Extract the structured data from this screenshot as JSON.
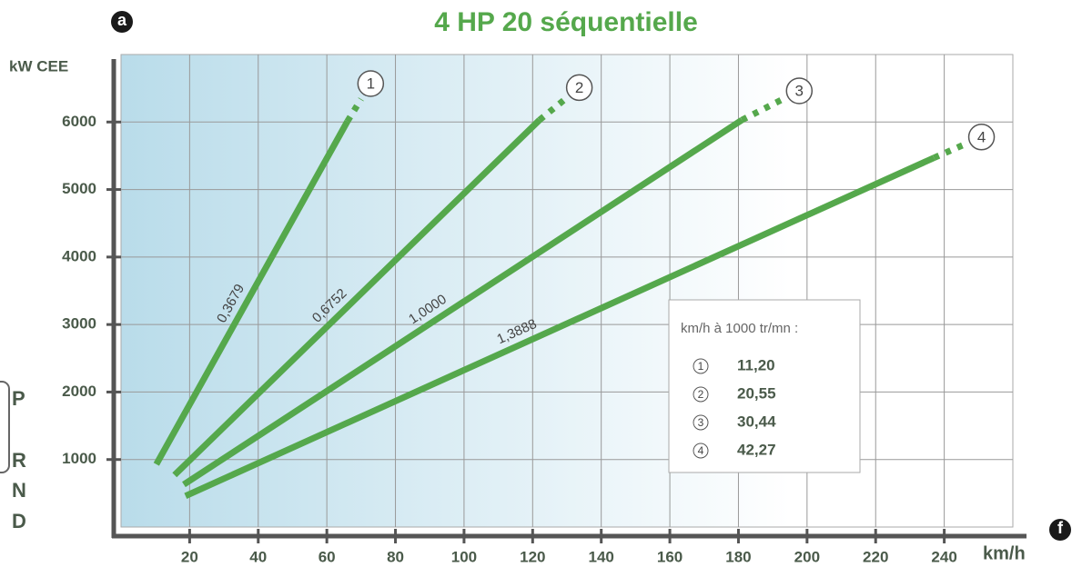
{
  "chart_data": {
    "type": "line",
    "title": "4 HP 20 séquentielle",
    "badge_left": "a",
    "badge_right": "f",
    "ylabel": "kW CEE",
    "xlabel": "km/h",
    "gear_positions": [
      "P",
      "R",
      "N",
      "D"
    ],
    "xlim": [
      0,
      260
    ],
    "ylim": [
      0,
      7000
    ],
    "xticks": [
      20,
      40,
      60,
      80,
      100,
      120,
      140,
      160,
      180,
      200,
      220,
      240
    ],
    "yticks": [
      1000,
      2000,
      3000,
      4000,
      5000,
      6000
    ],
    "grid": true,
    "color": "#55a84c",
    "legend_title": "km/h à 1000 tr/mn :",
    "series": [
      {
        "name": "1",
        "ratio": "0,3679",
        "legend_value": "11,20",
        "x": [
          10.3,
          66
        ],
        "values": [
          930,
          6010
        ],
        "dashed_to": {
          "x": 70,
          "value": 6340
        }
      },
      {
        "name": "2",
        "ratio": "0,6752",
        "legend_value": "20,55",
        "x": [
          15.6,
          122
        ],
        "values": [
          770,
          6030
        ],
        "dashed_to": {
          "x": 129.5,
          "value": 6340
        }
      },
      {
        "name": "3",
        "ratio": "1,0000",
        "legend_value": "30,44",
        "x": [
          18.3,
          181
        ],
        "values": [
          630,
          6030
        ],
        "dashed_to": {
          "x": 193,
          "value": 6340
        }
      },
      {
        "name": "4",
        "ratio": "1,3888",
        "legend_value": "42,27",
        "x": [
          18.8,
          237
        ],
        "values": [
          460,
          5470
        ],
        "dashed_to": {
          "x": 246,
          "value": 5670
        }
      }
    ]
  }
}
